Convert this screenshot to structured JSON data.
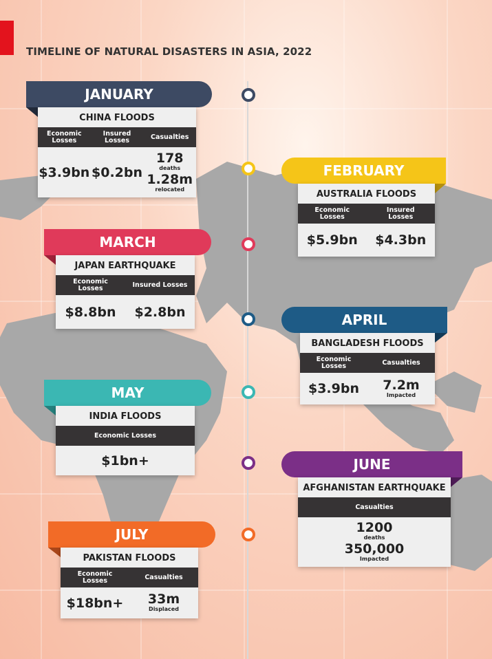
{
  "header": {
    "title": "TIMELINE OF NATURAL DISASTERS IN ASIA, 2022"
  },
  "events": [
    {
      "month": "JANUARY",
      "event": "CHINA FLOODS",
      "columns": [
        {
          "header": "Economic Losses",
          "values": [
            {
              "value": "$3.9bn"
            }
          ]
        },
        {
          "header": "Insured Losses",
          "values": [
            {
              "value": "$0.2bn"
            }
          ]
        },
        {
          "header": "Casualties",
          "values": [
            {
              "value": "178",
              "note": "deaths"
            },
            {
              "value": "1.28m",
              "note": "relocated"
            }
          ]
        }
      ]
    },
    {
      "month": "FEBRUARY",
      "event": "AUSTRALIA FLOODS",
      "columns": [
        {
          "header": "Economic Losses",
          "values": [
            {
              "value": "$5.9bn"
            }
          ]
        },
        {
          "header": "Insured Losses",
          "values": [
            {
              "value": "$4.3bn"
            }
          ]
        }
      ]
    },
    {
      "month": "MARCH",
      "event": "JAPAN EARTHQUAKE",
      "columns": [
        {
          "header": "Economic Losses",
          "values": [
            {
              "value": "$8.8bn"
            }
          ]
        },
        {
          "header": "Insured Losses",
          "values": [
            {
              "value": "$2.8bn"
            }
          ]
        }
      ]
    },
    {
      "month": "APRIL",
      "event": "BANGLADESH FLOODS",
      "columns": [
        {
          "header": "Economic Losses",
          "values": [
            {
              "value": "$3.9bn"
            }
          ]
        },
        {
          "header": "Casualties",
          "values": [
            {
              "value": "7.2m",
              "note": "Impacted"
            }
          ]
        }
      ]
    },
    {
      "month": "MAY",
      "event": "INDIA FLOODS",
      "columns": [
        {
          "header": "Economic Losses",
          "values": [
            {
              "value": "$1bn+"
            }
          ]
        }
      ]
    },
    {
      "month": "JUNE",
      "event": "AFGHANISTAN EARTHQUAKE",
      "columns": [
        {
          "header": "Casualties",
          "values": [
            {
              "value": "1200",
              "note": "deaths"
            },
            {
              "value": "350,000",
              "note": "Impacted"
            }
          ]
        }
      ]
    },
    {
      "month": "JULY",
      "event": "PAKISTAN FLOODS",
      "columns": [
        {
          "header": "Economic Losses",
          "values": [
            {
              "value": "$18bn+"
            }
          ]
        },
        {
          "header": "Casualties",
          "values": [
            {
              "value": "33m",
              "note": "Displaced"
            }
          ]
        }
      ]
    }
  ]
}
